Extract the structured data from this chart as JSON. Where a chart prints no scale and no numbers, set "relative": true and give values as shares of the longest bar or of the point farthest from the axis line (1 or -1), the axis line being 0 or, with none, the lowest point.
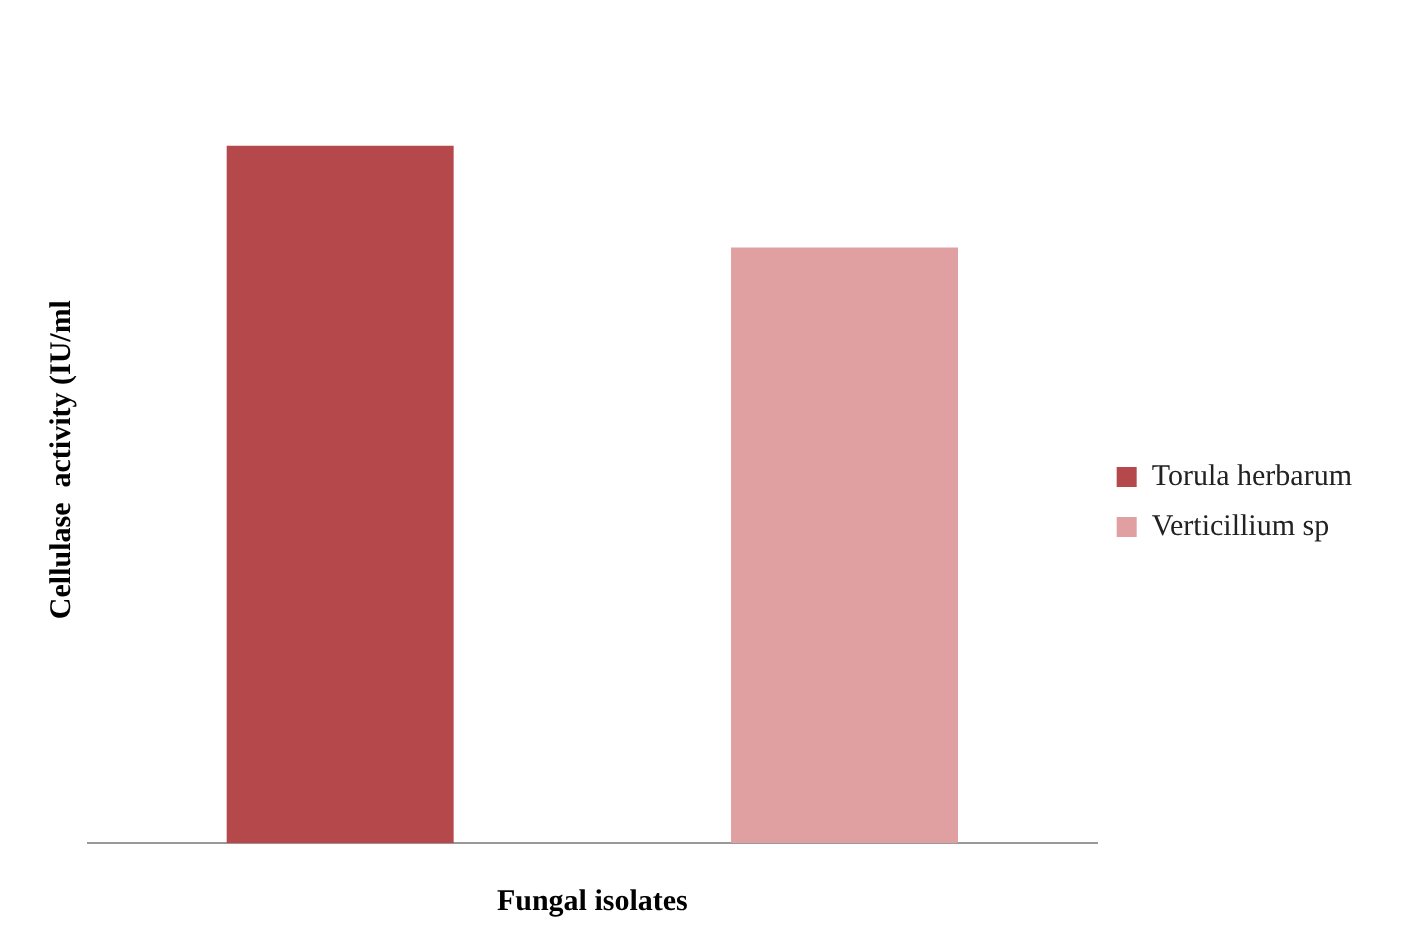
{
  "chart_data": {
    "type": "bar",
    "relative": true,
    "xlabel": "Fungal isolates",
    "ylabel": "Cellulase  activity (IU/ml",
    "categories": [
      null,
      null
    ],
    "stacked": true,
    "series": [
      {
        "name": "Torula herbarum",
        "color": "#b5484a",
        "values": [
          1,
          null
        ]
      },
      {
        "name": "Verticillium sp",
        "color": "#e0a0a2",
        "values": [
          null,
          0.854
        ]
      }
    ],
    "legend": "right",
    "grid": false
  }
}
